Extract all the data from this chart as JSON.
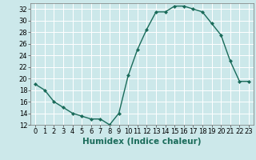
{
  "x": [
    0,
    1,
    2,
    3,
    4,
    5,
    6,
    7,
    8,
    9,
    10,
    11,
    12,
    13,
    14,
    15,
    16,
    17,
    18,
    19,
    20,
    21,
    22,
    23
  ],
  "y": [
    19,
    18,
    16,
    15,
    14,
    13.5,
    13,
    13,
    12,
    14,
    20.5,
    25,
    28.5,
    31.5,
    31.5,
    32.5,
    32.5,
    32,
    31.5,
    29.5,
    27.5,
    23,
    19.5,
    19.5
  ],
  "xlabel": "Humidex (Indice chaleur)",
  "xlim": [
    -0.5,
    23.5
  ],
  "ylim": [
    12,
    33
  ],
  "yticks": [
    12,
    14,
    16,
    18,
    20,
    22,
    24,
    26,
    28,
    30,
    32
  ],
  "xticks": [
    0,
    1,
    2,
    3,
    4,
    5,
    6,
    7,
    8,
    9,
    10,
    11,
    12,
    13,
    14,
    15,
    16,
    17,
    18,
    19,
    20,
    21,
    22,
    23
  ],
  "line_color": "#1a6b5a",
  "bg_color": "#cce8ea",
  "grid_color": "#ffffff",
  "tick_label_fontsize": 6.0,
  "xlabel_fontsize": 7.5
}
